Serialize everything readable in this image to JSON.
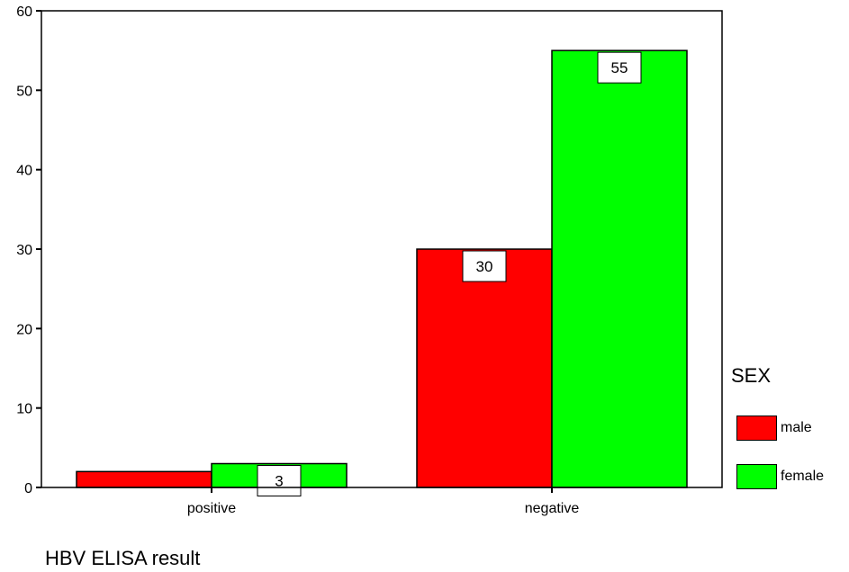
{
  "chart_data": {
    "type": "bar",
    "categories": [
      "positive",
      "negative"
    ],
    "series": [
      {
        "name": "male",
        "color": "#ff0000",
        "values": [
          2,
          30
        ],
        "labels": [
          "",
          "30"
        ]
      },
      {
        "name": "female",
        "color": "#00ff00",
        "values": [
          3,
          55
        ],
        "labels": [
          "3",
          "55"
        ]
      }
    ],
    "xlabel": "HBV ELISA result",
    "ylabel": "",
    "ylim": [
      0,
      60
    ],
    "yticks": [
      0,
      10,
      20,
      30,
      40,
      50,
      60
    ],
    "legend_title": "SEX",
    "legend_position": "right",
    "grid": false
  }
}
